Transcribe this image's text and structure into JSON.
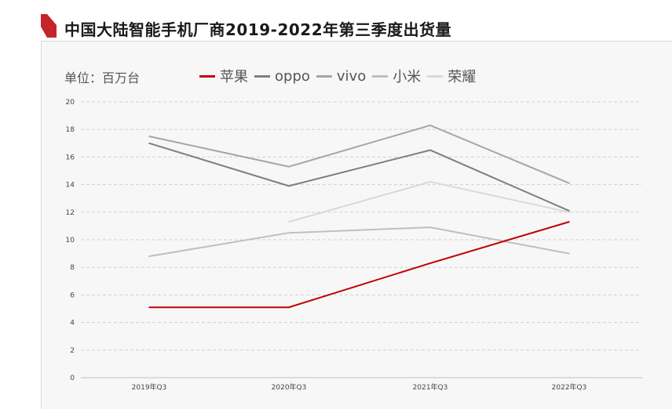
{
  "header": {
    "title": "中国大陆智能手机厂商2019-2022年第三季度出货量"
  },
  "unit_label": "单位：百万台",
  "colors": {
    "accent": "#c6242b",
    "panel_bg": "#f7f7f7"
  },
  "chart_data": {
    "type": "line",
    "title": "中国大陆智能手机厂商2019-2022年第三季度出货量",
    "xlabel": "",
    "ylabel": "单位：百万台",
    "categories": [
      "2019年Q3",
      "2020年Q3",
      "2021年Q3",
      "2022年Q3"
    ],
    "ylim": [
      0,
      20
    ],
    "yticks": [
      0,
      2,
      4,
      6,
      8,
      10,
      12,
      14,
      16,
      18,
      20
    ],
    "grid": true,
    "legend_position": "top",
    "series": [
      {
        "name": "苹果",
        "color": "#c00000",
        "values": [
          5.1,
          5.1,
          8.3,
          11.3
        ]
      },
      {
        "name": "oppo",
        "color": "#7f7f7f",
        "values": [
          17.0,
          13.9,
          16.5,
          12.1
        ]
      },
      {
        "name": "vivo",
        "color": "#a6a6a6",
        "values": [
          17.5,
          15.3,
          18.3,
          14.1
        ]
      },
      {
        "name": "小米",
        "color": "#bfbfbf",
        "values": [
          8.8,
          10.5,
          10.9,
          9.0
        ]
      },
      {
        "name": "荣耀",
        "color": "#d9d9d9",
        "values": [
          null,
          11.3,
          14.2,
          12.0
        ]
      }
    ]
  }
}
